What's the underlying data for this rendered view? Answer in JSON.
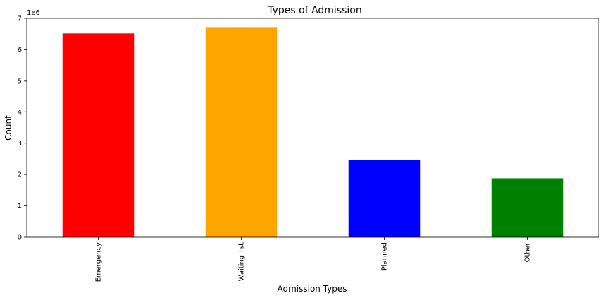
{
  "chart_data": {
    "type": "bar",
    "title": "Types of Admission",
    "xlabel": "Admission Types",
    "ylabel": "Count",
    "offset_label": "1e6",
    "categories": [
      "Emergency",
      "Waiting list",
      "Planned",
      "Other"
    ],
    "values": [
      6520000,
      6700000,
      2470000,
      1880000
    ],
    "colors": [
      "#ff0000",
      "#ffa500",
      "#0000ff",
      "#008000"
    ],
    "ylim": [
      0,
      7000000
    ],
    "yticks": [
      0,
      1,
      2,
      3,
      4,
      5,
      6,
      7
    ],
    "ytick_scale": 1000000,
    "grid": false,
    "legend": false
  }
}
